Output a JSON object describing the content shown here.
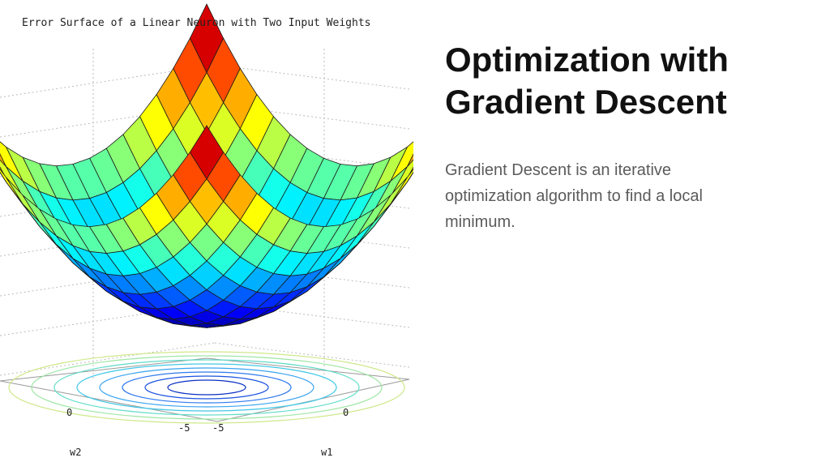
{
  "slide": {
    "title_line1": "Optimization with",
    "title_line2": "Gradient Descent",
    "body": "Gradient Descent is an iterative optimization algorithm to find a local minimum."
  },
  "figure": {
    "title": "Error Surface of a Linear Neuron with Two Input Weights",
    "ticks": {
      "w2_zero": "0",
      "w2_neg": "-5",
      "w1_neg": "-5",
      "w1_zero": "0"
    },
    "axis_w2": "w2",
    "axis_w1": "w1"
  },
  "chart_data": {
    "type": "surface",
    "title": "Error Surface of a Linear Neuron with Two Input Weights",
    "xlabel": "w1",
    "ylabel": "w2",
    "xticks": [
      "-5",
      "0"
    ],
    "yticks": [
      "-5",
      "0"
    ],
    "surface": "paraboloid (bowl) with contour lines projected on base plane",
    "colormap": "jet",
    "grid": true
  }
}
